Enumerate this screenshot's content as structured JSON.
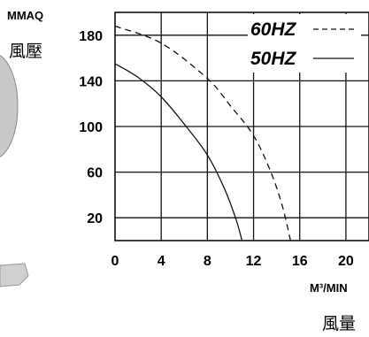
{
  "chart_data": {
    "type": "line",
    "y_unit": "MMAQ",
    "y_label": "風壓",
    "x_unit": "M³/MIN",
    "x_label": "風量",
    "x_ticks": [
      0,
      4,
      8,
      12,
      16,
      20
    ],
    "y_ticks": [
      20,
      60,
      100,
      140,
      180
    ],
    "xlim": [
      0,
      22
    ],
    "ylim": [
      0,
      200
    ],
    "grid": true,
    "legend_position": "top-right",
    "colors": {
      "line": "#111111",
      "grid": "#111111",
      "background": "#ffffff"
    },
    "series": [
      {
        "name": "60HZ",
        "style": "dashed",
        "points": [
          [
            0,
            188
          ],
          [
            4,
            173
          ],
          [
            8,
            142
          ],
          [
            10,
            118
          ],
          [
            12,
            92
          ],
          [
            13.5,
            60
          ],
          [
            14.5,
            30
          ],
          [
            15.2,
            0
          ]
        ]
      },
      {
        "name": "50HZ",
        "style": "solid",
        "points": [
          [
            0,
            155
          ],
          [
            2,
            143
          ],
          [
            4,
            126
          ],
          [
            6,
            102
          ],
          [
            8,
            75
          ],
          [
            9.5,
            45
          ],
          [
            10.5,
            18
          ],
          [
            11,
            0
          ]
        ]
      }
    ]
  }
}
